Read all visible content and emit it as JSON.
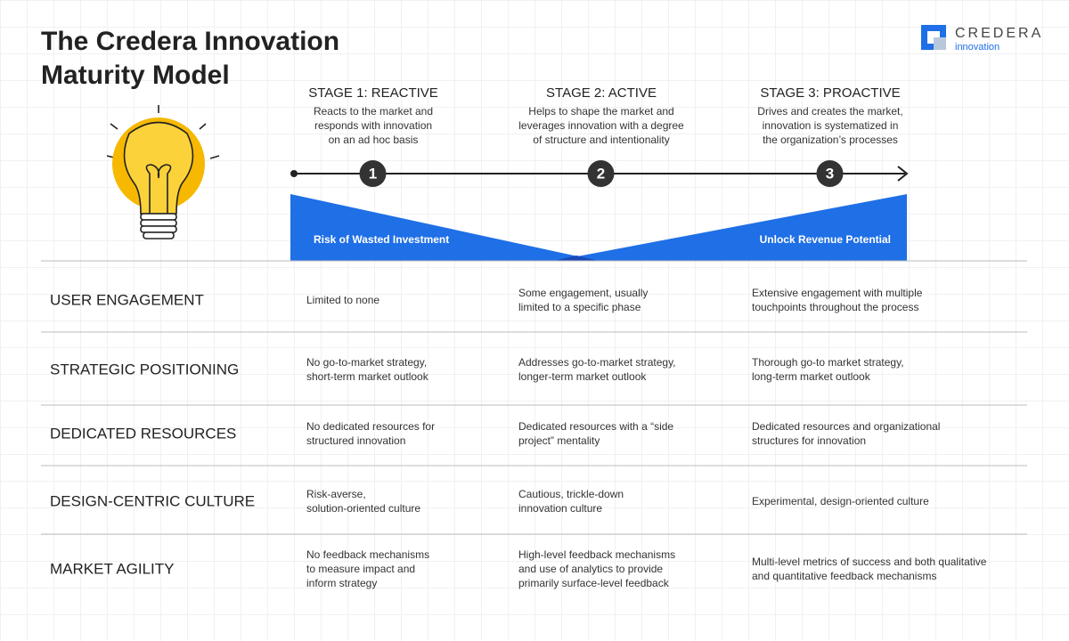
{
  "header": {
    "title_lines": [
      "The Credera Innovation",
      "Maturity Model"
    ]
  },
  "logo": {
    "brand": "CREDERA",
    "sub": "innovation"
  },
  "stages": [
    {
      "label": "STAGE 1: REACTIVE",
      "number": 1,
      "description": [
        "Reacts to the market and",
        "responds with innovation",
        "on an ad hoc basis"
      ]
    },
    {
      "label": "STAGE 2: ACTIVE",
      "number": 2,
      "description": [
        "Helps to shape the market and",
        "leverages innovation with a degree",
        "of structure and intentionality"
      ]
    },
    {
      "label": "STAGE 3: PROACTIVE",
      "number": 3,
      "description": [
        "Drives and creates the market,",
        "innovation is systematized in",
        "the organization’s processes"
      ]
    }
  ],
  "bands": {
    "left": "Risk of Wasted Investment",
    "right": "Unlock Revenue Potential"
  },
  "table": {
    "rows": [
      {
        "category": "USER ENGAGEMENT",
        "cells": [
          [
            "Limited to none"
          ],
          [
            "Some engagement, usually",
            "limited to a specific phase"
          ],
          [
            "Extensive engagement with multiple",
            "touchpoints throughout the process"
          ]
        ]
      },
      {
        "category": "STRATEGIC POSITIONING",
        "cells": [
          [
            "No go-to-market strategy,",
            "short-term market outlook"
          ],
          [
            "Addresses go-to-market strategy,",
            "longer-term market outlook"
          ],
          [
            "Thorough go-to market strategy,",
            "long-term market outlook"
          ]
        ]
      },
      {
        "category": "DEDICATED RESOURCES",
        "cells": [
          [
            "No dedicated resources for",
            "structured innovation"
          ],
          [
            "Dedicated resources with a “side",
            "project” mentality"
          ],
          [
            "Dedicated resources and organizational",
            "structures for innovation"
          ]
        ]
      },
      {
        "category": "DESIGN-CENTRIC CULTURE",
        "cells": [
          [
            "Risk-averse,",
            "solution-oriented culture"
          ],
          [
            "Cautious, trickle-down",
            "innovation culture"
          ],
          [
            "Experimental, design-oriented culture"
          ]
        ]
      },
      {
        "category": "MARKET AGILITY",
        "cells": [
          [
            "No feedback mechanisms",
            "to measure impact and",
            "inform strategy"
          ],
          [
            "High-level feedback mechanisms",
            "and use of analytics to provide",
            "primarily surface-level feedback"
          ],
          [
            "Multi-level metrics of success and both qualitative",
            "and quantitative feedback mechanisms"
          ]
        ]
      }
    ]
  }
}
